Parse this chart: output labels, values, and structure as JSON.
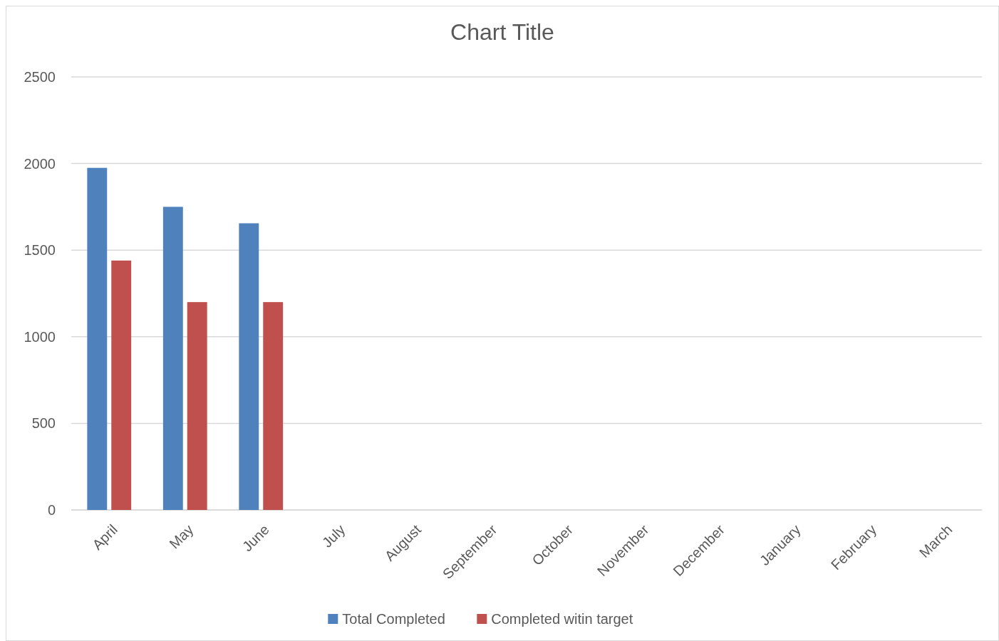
{
  "chart_data": {
    "type": "bar",
    "title": "Chart Title",
    "categories": [
      "April",
      "May",
      "June",
      "July",
      "August",
      "September",
      "October",
      "November",
      "December",
      "January",
      "February",
      "March"
    ],
    "series": [
      {
        "name": "Total Completed",
        "color": "#4f81bd",
        "values": [
          1975,
          1750,
          1655,
          null,
          null,
          null,
          null,
          null,
          null,
          null,
          null,
          null
        ]
      },
      {
        "name": "Completed witin target",
        "color": "#c0504d",
        "values": [
          1440,
          1200,
          1200,
          null,
          null,
          null,
          null,
          null,
          null,
          null,
          null,
          null
        ]
      }
    ],
    "ylim": [
      0,
      2500
    ],
    "yticks": [
      0,
      500,
      1000,
      1500,
      2000,
      2500
    ],
    "grid": "y",
    "legend": "bottom"
  }
}
